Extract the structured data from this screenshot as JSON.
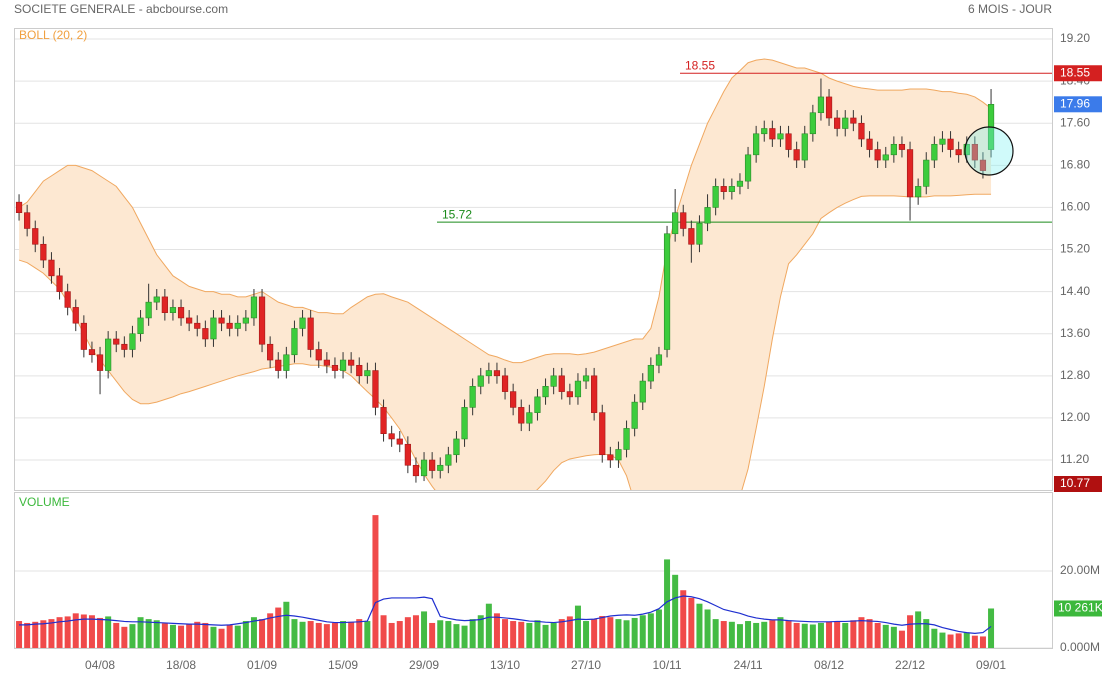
{
  "header": {
    "title": "SOCIETE GENERALE - abcbourse.com",
    "period": "6 MOIS - JOUR"
  },
  "chart_data": [
    {
      "type": "candlestick",
      "label": "BOLL (20, 2)",
      "categories": [
        null,
        null,
        null,
        null,
        null,
        null,
        null,
        null,
        null,
        null,
        "04/08",
        null,
        null,
        null,
        null,
        null,
        null,
        null,
        null,
        null,
        "18/08",
        null,
        null,
        null,
        null,
        null,
        null,
        null,
        null,
        null,
        "01/09",
        null,
        null,
        null,
        null,
        null,
        null,
        null,
        null,
        null,
        "15/09",
        null,
        null,
        null,
        null,
        null,
        null,
        null,
        null,
        null,
        "29/09",
        null,
        null,
        null,
        null,
        null,
        null,
        null,
        null,
        null,
        "13/10",
        null,
        null,
        null,
        null,
        null,
        null,
        null,
        null,
        null,
        "27/10",
        null,
        null,
        null,
        null,
        null,
        null,
        null,
        null,
        null,
        "10/11",
        null,
        null,
        null,
        null,
        null,
        null,
        null,
        null,
        null,
        "24/11",
        null,
        null,
        null,
        null,
        null,
        null,
        null,
        null,
        null,
        "08/12",
        null,
        null,
        null,
        null,
        null,
        null,
        null,
        null,
        null,
        "22/12",
        null,
        null,
        null,
        null,
        null,
        null,
        null,
        null,
        null,
        "09/01"
      ],
      "open": [
        16.1,
        15.9,
        15.6,
        15.3,
        15.0,
        14.7,
        14.4,
        14.1,
        13.8,
        13.3,
        13.2,
        12.9,
        13.5,
        13.4,
        13.3,
        13.6,
        13.9,
        14.2,
        14.3,
        14.0,
        14.1,
        13.9,
        13.8,
        13.7,
        13.5,
        13.9,
        13.8,
        13.7,
        13.8,
        13.9,
        14.3,
        13.4,
        13.1,
        12.9,
        13.2,
        13.7,
        13.9,
        13.3,
        13.1,
        13.0,
        12.9,
        13.1,
        13.0,
        12.8,
        12.9,
        12.2,
        11.7,
        11.6,
        11.5,
        11.1,
        10.9,
        11.2,
        11.0,
        11.1,
        11.3,
        11.6,
        12.2,
        12.6,
        12.8,
        12.9,
        12.8,
        12.5,
        12.2,
        11.9,
        12.1,
        12.4,
        12.6,
        12.8,
        12.5,
        12.4,
        12.7,
        12.8,
        12.1,
        11.3,
        11.2,
        11.4,
        11.8,
        12.3,
        12.7,
        13.0,
        13.3,
        15.5,
        15.9,
        15.6,
        15.3,
        15.7,
        16.0,
        16.4,
        16.3,
        16.4,
        16.5,
        17.0,
        17.4,
        17.5,
        17.3,
        17.4,
        17.1,
        16.9,
        17.4,
        17.8,
        18.1,
        17.7,
        17.5,
        17.7,
        17.6,
        17.3,
        17.1,
        16.9,
        17.0,
        17.2,
        17.1,
        16.2,
        16.4,
        16.9,
        17.2,
        17.3,
        17.1,
        17.0,
        17.2,
        16.9,
        17.1
      ],
      "high": [
        16.25,
        16.05,
        15.75,
        15.45,
        15.15,
        14.85,
        14.55,
        14.25,
        13.95,
        13.45,
        13.35,
        13.65,
        13.65,
        13.55,
        13.75,
        14.05,
        14.55,
        14.45,
        14.45,
        14.25,
        14.25,
        14.05,
        13.95,
        13.85,
        14.05,
        14.05,
        13.95,
        13.95,
        14.05,
        14.45,
        14.45,
        13.55,
        13.25,
        13.35,
        13.85,
        14.05,
        14.05,
        13.45,
        13.25,
        13.15,
        13.25,
        13.25,
        13.15,
        13.05,
        13.05,
        12.35,
        11.85,
        11.75,
        11.65,
        11.25,
        11.35,
        11.35,
        11.25,
        11.45,
        11.75,
        12.35,
        12.75,
        12.95,
        13.05,
        13.05,
        12.95,
        12.65,
        12.35,
        12.25,
        12.55,
        12.75,
        12.95,
        12.95,
        12.65,
        12.85,
        12.95,
        12.95,
        12.25,
        11.45,
        11.55,
        11.95,
        12.45,
        12.85,
        13.15,
        13.35,
        15.65,
        16.35,
        16.05,
        15.75,
        15.85,
        16.25,
        16.55,
        16.55,
        16.55,
        16.65,
        17.15,
        17.55,
        17.65,
        17.65,
        17.55,
        17.55,
        17.25,
        17.55,
        17.95,
        18.45,
        18.25,
        17.85,
        17.85,
        17.85,
        17.75,
        17.45,
        17.25,
        17.15,
        17.35,
        17.35,
        17.25,
        16.55,
        17.05,
        17.35,
        17.45,
        17.45,
        17.25,
        17.35,
        17.35,
        17.05,
        18.25
      ],
      "low": [
        15.75,
        15.45,
        15.15,
        14.85,
        14.55,
        14.25,
        13.95,
        13.65,
        13.15,
        13.05,
        12.45,
        12.75,
        13.25,
        13.15,
        13.15,
        13.45,
        13.75,
        14.05,
        13.85,
        13.85,
        13.75,
        13.65,
        13.55,
        13.35,
        13.35,
        13.65,
        13.55,
        13.55,
        13.65,
        13.75,
        13.25,
        12.95,
        12.75,
        12.75,
        13.05,
        13.55,
        13.15,
        12.95,
        12.85,
        12.75,
        12.75,
        12.85,
        12.65,
        12.65,
        12.05,
        11.55,
        11.45,
        11.35,
        10.95,
        10.77,
        10.8,
        10.85,
        10.85,
        10.95,
        11.15,
        11.45,
        12.05,
        12.45,
        12.65,
        12.65,
        12.35,
        12.05,
        11.75,
        11.75,
        11.95,
        12.25,
        12.45,
        12.35,
        12.25,
        12.25,
        12.55,
        11.95,
        11.15,
        11.05,
        11.05,
        11.25,
        11.65,
        12.15,
        12.55,
        12.85,
        13.15,
        15.35,
        15.45,
        14.95,
        15.15,
        15.55,
        15.85,
        16.15,
        16.15,
        16.25,
        16.35,
        16.85,
        17.25,
        17.15,
        17.15,
        16.95,
        16.75,
        16.75,
        17.25,
        17.65,
        17.55,
        17.35,
        17.35,
        17.45,
        17.15,
        16.95,
        16.75,
        16.75,
        16.85,
        16.95,
        15.75,
        16.05,
        16.25,
        16.75,
        17.05,
        16.95,
        16.85,
        16.85,
        16.75,
        16.55,
        16.95
      ],
      "close": [
        15.9,
        15.6,
        15.3,
        15.0,
        14.7,
        14.4,
        14.1,
        13.8,
        13.3,
        13.2,
        12.9,
        13.5,
        13.4,
        13.3,
        13.6,
        13.9,
        14.2,
        14.3,
        14.0,
        14.1,
        13.9,
        13.8,
        13.7,
        13.5,
        13.9,
        13.8,
        13.7,
        13.8,
        13.9,
        14.3,
        13.4,
        13.1,
        12.9,
        13.2,
        13.7,
        13.9,
        13.3,
        13.1,
        13.0,
        12.9,
        13.1,
        13.0,
        12.8,
        12.9,
        12.2,
        11.7,
        11.6,
        11.5,
        11.1,
        10.9,
        11.2,
        11.0,
        11.1,
        11.3,
        11.6,
        12.2,
        12.6,
        12.8,
        12.9,
        12.8,
        12.5,
        12.2,
        11.9,
        12.1,
        12.4,
        12.6,
        12.8,
        12.5,
        12.4,
        12.7,
        12.8,
        12.1,
        11.3,
        11.2,
        11.4,
        11.8,
        12.3,
        12.7,
        13.0,
        13.2,
        15.5,
        15.9,
        15.6,
        15.3,
        15.7,
        16.0,
        16.4,
        16.3,
        16.4,
        16.5,
        17.0,
        17.4,
        17.5,
        17.3,
        17.4,
        17.1,
        16.9,
        17.4,
        17.8,
        18.1,
        17.7,
        17.5,
        17.7,
        17.6,
        17.3,
        17.1,
        16.9,
        17.0,
        17.2,
        17.1,
        16.2,
        16.4,
        16.9,
        17.2,
        17.3,
        17.1,
        17.0,
        17.2,
        16.9,
        16.7,
        17.96
      ],
      "upper_band": [
        16.0,
        16.1,
        16.3,
        16.5,
        16.6,
        16.7,
        16.8,
        16.8,
        16.75,
        16.7,
        16.6,
        16.5,
        16.4,
        16.2,
        16.0,
        15.7,
        15.4,
        15.1,
        14.9,
        14.7,
        14.6,
        14.5,
        14.45,
        14.4,
        14.4,
        14.35,
        14.35,
        14.3,
        14.3,
        14.35,
        14.4,
        14.3,
        14.2,
        14.15,
        14.1,
        14.1,
        14.05,
        14.0,
        14.0,
        13.98,
        13.98,
        14.1,
        14.2,
        14.3,
        14.35,
        14.36,
        14.3,
        14.25,
        14.2,
        14.1,
        14.0,
        13.9,
        13.8,
        13.7,
        13.6,
        13.5,
        13.4,
        13.3,
        13.2,
        13.16,
        13.1,
        13.05,
        13.05,
        13.1,
        13.15,
        13.2,
        13.22,
        13.22,
        13.22,
        13.2,
        13.22,
        13.25,
        13.3,
        13.35,
        13.4,
        13.45,
        13.5,
        13.5,
        13.7,
        14.3,
        15.2,
        15.8,
        16.3,
        16.8,
        17.2,
        17.6,
        17.9,
        18.2,
        18.46,
        18.6,
        18.75,
        18.8,
        18.82,
        18.8,
        18.75,
        18.7,
        18.65,
        18.65,
        18.6,
        18.55,
        18.46,
        18.4,
        18.35,
        18.3,
        18.27,
        18.25,
        18.23,
        18.23,
        18.23,
        18.23,
        18.25,
        18.25,
        18.25,
        18.23,
        18.2,
        18.2,
        18.17,
        18.15,
        18.1,
        18.0,
        17.88
      ],
      "lower_band": [
        15.0,
        14.95,
        14.85,
        14.75,
        14.6,
        14.45,
        14.2,
        13.9,
        13.6,
        13.3,
        13.1,
        12.9,
        12.7,
        12.5,
        12.35,
        12.27,
        12.27,
        12.3,
        12.35,
        12.4,
        12.46,
        12.5,
        12.55,
        12.6,
        12.65,
        12.7,
        12.75,
        12.8,
        12.84,
        12.88,
        12.93,
        12.95,
        12.98,
        13.0,
        13.03,
        13.03,
        13.0,
        13.0,
        12.98,
        12.95,
        12.9,
        12.8,
        12.65,
        12.5,
        12.36,
        12.2,
        12.0,
        11.79,
        11.5,
        11.2,
        10.93,
        10.7,
        10.5,
        10.35,
        10.25,
        10.2,
        10.2,
        10.2,
        10.2,
        10.2,
        10.25,
        10.3,
        10.4,
        10.5,
        10.64,
        10.8,
        11.0,
        11.15,
        11.22,
        11.25,
        11.28,
        11.3,
        11.31,
        11.3,
        11.2,
        10.9,
        10.4,
        9.9,
        9.5,
        9.2,
        9.0,
        8.9,
        8.85,
        8.85,
        8.9,
        9.0,
        9.2,
        9.5,
        9.9,
        10.5,
        11.03,
        11.8,
        12.6,
        13.5,
        14.3,
        14.93,
        15.1,
        15.3,
        15.5,
        15.79,
        15.9,
        16.0,
        16.08,
        16.15,
        16.21,
        16.22,
        16.22,
        16.22,
        16.22,
        16.21,
        16.2,
        16.2,
        16.2,
        16.22,
        16.22,
        16.22,
        16.23,
        16.24,
        16.25,
        16.25,
        16.25
      ],
      "up_color": "#3ccc3c",
      "down_color": "#e02424",
      "band_fill": "#fde8d2",
      "band_line": "#f0a860",
      "levels": [
        {
          "value": 18.55,
          "color": "#d42020"
        },
        {
          "value": 15.72,
          "color": "#1a8a1a"
        }
      ],
      "last_color": "#3b7bea",
      "low_color": "#b01010",
      "ylim": [
        10.63,
        19.41
      ],
      "yticks": [
        {
          "value": 11.2,
          "label": "11.20"
        },
        {
          "value": 12.0,
          "label": "12.00"
        },
        {
          "value": 12.8,
          "label": "12.80"
        },
        {
          "value": 13.6,
          "label": "13.60"
        },
        {
          "value": 14.4,
          "label": "14.40"
        },
        {
          "value": 15.2,
          "label": "15.20"
        },
        {
          "value": 16.0,
          "label": "16.00"
        },
        {
          "value": 16.8,
          "label": "16.80"
        },
        {
          "value": 17.6,
          "label": "17.60"
        },
        {
          "value": 18.4,
          "label": "18.40"
        },
        {
          "value": 19.2,
          "label": "19.20"
        }
      ],
      "grid": true
    },
    {
      "type": "bar",
      "label": "VOLUME",
      "values": [
        7,
        6.5,
        6.8,
        7.2,
        7.5,
        8,
        8.2,
        9,
        8.7,
        8.5,
        7.8,
        8.2,
        6.5,
        5.5,
        6.2,
        8,
        7.5,
        7.2,
        6.4,
        6,
        5.8,
        6.2,
        6.8,
        6.5,
        5.5,
        5,
        6,
        5.8,
        7,
        8,
        7.5,
        9,
        10.5,
        12,
        7.5,
        6.8,
        7,
        6.5,
        6.2,
        6.5,
        7,
        6.8,
        7.5,
        7,
        34.5,
        8.5,
        6.5,
        7,
        8,
        8.5,
        9.5,
        6.5,
        7.2,
        7,
        6.2,
        5.8,
        7.5,
        8.5,
        11.5,
        9,
        7.5,
        7,
        6.8,
        6.5,
        7.2,
        6,
        6.5,
        7.5,
        8.2,
        11,
        7,
        7.5,
        8.3,
        8,
        7.5,
        7.2,
        7.8,
        8.5,
        9,
        10,
        23,
        19,
        15,
        13,
        11.5,
        10,
        7.5,
        7,
        6.8,
        6.2,
        7,
        6.5,
        6.8,
        7.2,
        8,
        7,
        6.5,
        6.3,
        6.1,
        6.5,
        6.8,
        7,
        6.5,
        7.2,
        8,
        7.5,
        6.5,
        6,
        5.5,
        4.5,
        8.5,
        9.5,
        7.5,
        5,
        4,
        3.5,
        3.8,
        4,
        3.2,
        3,
        10.261
      ],
      "last_value_label": "10 261K",
      "moving_average": [
        6,
        6,
        6.2,
        6.3,
        6.5,
        6.8,
        7,
        7.3,
        7.5,
        7.5,
        7.4,
        7.3,
        7.1,
        6.9,
        6.8,
        6.8,
        6.7,
        6.6,
        6.5,
        6.4,
        6.3,
        6.2,
        6.2,
        6.1,
        6,
        5.9,
        6,
        6.3,
        6.6,
        7,
        7.3,
        7.8,
        8.2,
        8.5,
        8.3,
        8,
        7.6,
        7.2,
        6.8,
        6.6,
        6.6,
        6.7,
        6.8,
        7.0,
        11.8,
        12.7,
        13,
        13,
        13,
        13,
        13.2,
        12.8,
        8.2,
        7.7,
        7.3,
        7.1,
        7.2,
        7.4,
        8,
        8,
        7.8,
        7.6,
        7.3,
        7,
        6.9,
        6.7,
        6.6,
        6.8,
        7.1,
        7.5,
        7.4,
        7.5,
        7.9,
        8.3,
        8.5,
        8.6,
        8.5,
        8.8,
        9.3,
        10.2,
        12,
        13,
        13.5,
        13.3,
        12.8,
        12,
        11,
        10,
        9.5,
        9,
        8.3,
        7.8,
        7.5,
        7.3,
        7.3,
        7.1,
        7,
        6.9,
        6.8,
        6.8,
        6.8,
        6.9,
        6.9,
        7,
        7.1,
        7,
        6.9,
        6.6,
        6.2,
        5.9,
        6.2,
        6.3,
        6.3,
        6,
        5.3,
        4.8,
        4.3,
        4,
        3.8,
        4,
        5.6
      ],
      "up_color": "#44bb44",
      "down_color": "#f04a4a",
      "ma_color": "#1f2fd0",
      "label_color": "#3cb83c",
      "ylim": [
        0,
        40.5
      ],
      "yticks": [
        {
          "value": 0,
          "label": "0.000M"
        },
        {
          "value": 20,
          "label": "20.00M"
        }
      ],
      "grid": true
    }
  ]
}
